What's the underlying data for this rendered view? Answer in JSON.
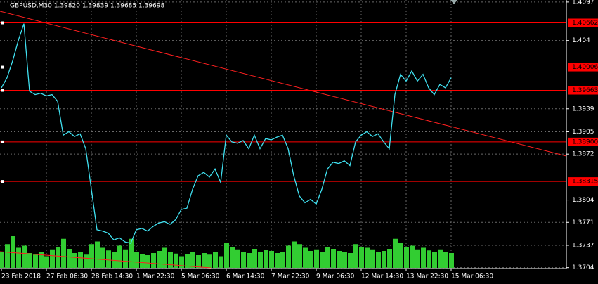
{
  "chart_data": {
    "type": "line",
    "title": "GBPUSD,M30  1.39820 1.39839 1.39685 1.39698",
    "categories": [
      "23 Feb 2018",
      null,
      null,
      null,
      null,
      null,
      null,
      null,
      "27 Feb 06:30",
      null,
      null,
      null,
      null,
      null,
      null,
      null,
      "28 Feb 14:30",
      null,
      null,
      null,
      null,
      null,
      null,
      null,
      "1 Mar 22:30",
      null,
      null,
      null,
      null,
      null,
      null,
      null,
      "5 Mar 06:30",
      null,
      null,
      null,
      null,
      null,
      null,
      null,
      "6 Mar 14:30",
      null,
      null,
      null,
      null,
      null,
      null,
      null,
      "7 Mar 22:30",
      null,
      null,
      null,
      null,
      null,
      null,
      null,
      "9 Mar 06:30",
      null,
      null,
      null,
      null,
      null,
      null,
      null,
      "12 Mar 14:30",
      null,
      null,
      null,
      null,
      null,
      null,
      null,
      "13 Mar 22:30",
      null,
      null,
      null,
      null,
      null,
      null,
      null,
      "15 Mar 06:30"
    ],
    "series": [
      {
        "name": "GBPUSD",
        "color": "#40e0f0",
        "values": [
          1.397,
          1.3985,
          1.401,
          1.404,
          1.4065,
          1.3965,
          1.396,
          1.3962,
          1.3958,
          1.396,
          1.395,
          1.39,
          1.3905,
          1.3898,
          1.3902,
          1.388,
          1.382,
          1.376,
          1.3758,
          1.3755,
          1.3745,
          1.3748,
          1.3742,
          1.374,
          1.376,
          1.3762,
          1.3758,
          1.3765,
          1.377,
          1.3772,
          1.3768,
          1.3775,
          1.379,
          1.3792,
          1.382,
          1.384,
          1.3845,
          1.3838,
          1.385,
          1.383,
          1.39,
          1.389,
          1.3888,
          1.3892,
          1.388,
          1.39,
          1.388,
          1.3895,
          1.3893,
          1.3897,
          1.39,
          1.388,
          1.384,
          1.381,
          1.38,
          1.3805,
          1.3798,
          1.382,
          1.385,
          1.386,
          1.3858,
          1.3862,
          1.3855,
          1.389,
          1.39,
          1.3905,
          1.3898,
          1.3902,
          1.389,
          1.388,
          1.396,
          1.399,
          1.398,
          1.3995,
          1.398,
          1.399,
          1.397,
          1.396,
          1.3975,
          1.397,
          1.3985
        ]
      },
      {
        "name": "Volume",
        "color": "#32cd32",
        "values": [
          30,
          45,
          60,
          38,
          42,
          28,
          25,
          30,
          22,
          35,
          40,
          55,
          36,
          28,
          30,
          25,
          45,
          50,
          38,
          33,
          30,
          42,
          35,
          55,
          30,
          26,
          24,
          28,
          32,
          38,
          30,
          27,
          22,
          26,
          30,
          24,
          28,
          25,
          30,
          22,
          48,
          40,
          35,
          30,
          28,
          36,
          30,
          34,
          32,
          28,
          30,
          42,
          50,
          45,
          38,
          32,
          35,
          30,
          40,
          36,
          32,
          30,
          28,
          45,
          40,
          38,
          35,
          30,
          32,
          36,
          55,
          48,
          40,
          42,
          35,
          38,
          33,
          30,
          35,
          30,
          28
        ]
      }
    ],
    "ylim": [
      1.36995,
      1.41
    ],
    "yticks": [
      1.4097,
      1.404,
      1.3939,
      1.3905,
      1.3872,
      1.3804,
      1.3771,
      1.3737,
      1.3704
    ],
    "levels": [
      {
        "value": 1.40662,
        "label": "1.40662"
      },
      {
        "value": 1.40006,
        "label": "1.40006"
      },
      {
        "value": 1.39663,
        "label": "1.39663"
      },
      {
        "value": 1.389,
        "label": "1.38900"
      },
      {
        "value": 1.38315,
        "label": "1.38315"
      }
    ],
    "level_color": "#ff0000",
    "grid": true
  }
}
